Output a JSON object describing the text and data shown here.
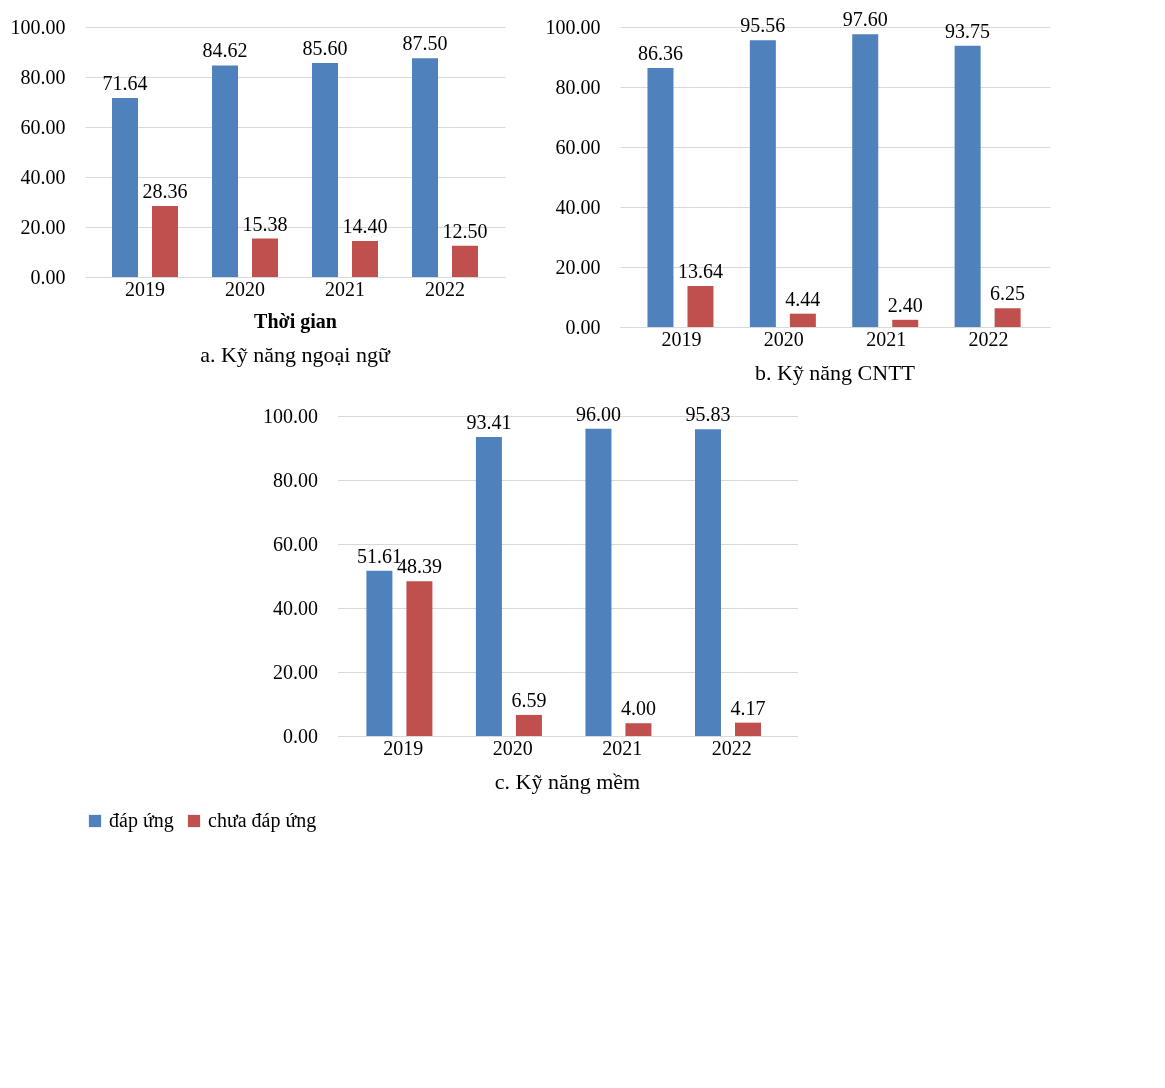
{
  "chart_data": [
    {
      "type": "bar",
      "title": "a. Kỹ năng ngoại ngữ",
      "xlabel": "Thời gian",
      "categories": [
        "2019",
        "2020",
        "2021",
        "2022"
      ],
      "series": [
        {
          "name": "đáp ứng",
          "color": "#4f81bd",
          "values": [
            71.64,
            84.62,
            85.6,
            87.5
          ],
          "value_labels": [
            "71.64",
            "84.62",
            "85.60",
            "87.50"
          ]
        },
        {
          "name": "chưa đáp ứng",
          "color": "#c0504d",
          "values": [
            28.36,
            15.38,
            14.4,
            12.5
          ],
          "value_labels": [
            "28.36",
            "15.38",
            "14.40",
            "12.50"
          ]
        }
      ],
      "ylim": [
        0,
        100
      ],
      "yticks": [
        {
          "value": 0,
          "label": "0.00"
        },
        {
          "value": 20,
          "label": "20.00"
        },
        {
          "value": 40,
          "label": "40.00"
        },
        {
          "value": 60,
          "label": "60.00"
        },
        {
          "value": 80,
          "label": "80.00"
        },
        {
          "value": 100,
          "label": "100.00"
        }
      ],
      "grid": "y",
      "legend": "bottom"
    },
    {
      "type": "bar",
      "title": "b. Kỹ năng CNTT",
      "categories": [
        "2019",
        "2020",
        "2021",
        "2022"
      ],
      "series": [
        {
          "name": "đáp ứng",
          "color": "#4f81bd",
          "values": [
            86.36,
            95.56,
            97.6,
            93.75
          ],
          "value_labels": [
            "86.36",
            "95.56",
            "97.60",
            "93.75"
          ]
        },
        {
          "name": "chưa đáp ứng",
          "color": "#c0504d",
          "values": [
            13.64,
            4.44,
            2.4,
            6.25
          ],
          "value_labels": [
            "13.64",
            "4.44",
            "2.40",
            "6.25"
          ]
        }
      ],
      "ylim": [
        0,
        100
      ],
      "yticks": [
        {
          "value": 0,
          "label": "0.00"
        },
        {
          "value": 20,
          "label": "20.00"
        },
        {
          "value": 40,
          "label": "40.00"
        },
        {
          "value": 60,
          "label": "60.00"
        },
        {
          "value": 80,
          "label": "80.00"
        },
        {
          "value": 100,
          "label": "100.00"
        }
      ],
      "grid": "y",
      "legend": "bottom"
    },
    {
      "type": "bar",
      "title": "c. Kỹ năng mềm",
      "categories": [
        "2019",
        "2020",
        "2021",
        "2022"
      ],
      "series": [
        {
          "name": "đáp ứng",
          "color": "#4f81bd",
          "values": [
            51.61,
            93.41,
            96.0,
            95.83
          ],
          "value_labels": [
            "51.61",
            "93.41",
            "96.00",
            "95.83"
          ]
        },
        {
          "name": "chưa đáp ứng",
          "color": "#c0504d",
          "values": [
            48.39,
            6.59,
            4.0,
            4.17
          ],
          "value_labels": [
            "48.39",
            "6.59",
            "4.00",
            "4.17"
          ]
        }
      ],
      "ylim": [
        0,
        100
      ],
      "yticks": [
        {
          "value": 0,
          "label": "0.00"
        },
        {
          "value": 20,
          "label": "20.00"
        },
        {
          "value": 40,
          "label": "40.00"
        },
        {
          "value": 60,
          "label": "60.00"
        },
        {
          "value": 80,
          "label": "80.00"
        },
        {
          "value": 100,
          "label": "100.00"
        }
      ],
      "grid": "y",
      "legend": "bottom"
    }
  ]
}
